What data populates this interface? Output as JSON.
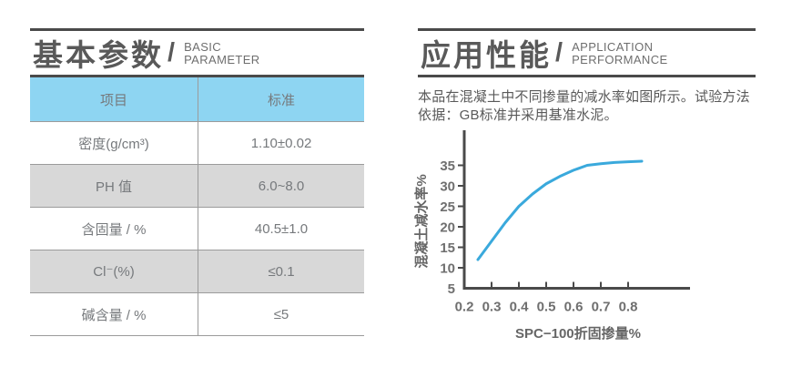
{
  "left_section": {
    "title_cn": "基本参数",
    "title_divider": "/",
    "title_en_line1": "BASIC",
    "title_en_line2": "PARAMETER",
    "table": {
      "headers": [
        "项目",
        "标准"
      ],
      "rows": [
        {
          "item": "密度(g/cm³)",
          "value": "1.10±0.02"
        },
        {
          "item": "PH 值",
          "value": "6.0~8.0"
        },
        {
          "item": "含固量 / %",
          "value": "40.5±1.0"
        },
        {
          "item": "Cl⁻(%)",
          "value": "≤0.1"
        },
        {
          "item": "碱含量 / %",
          "value": "≤5"
        }
      ],
      "header_bg": "#8ED5F2",
      "row_alt_bg": "#D8D8D8"
    }
  },
  "right_section": {
    "title_cn": "应用性能",
    "title_divider": "/",
    "title_en_line1": "APPLICATION",
    "title_en_line2": "PERFORMANCE",
    "description": "本品在混凝土中不同掺量的减水率如图所示。试验方法依据：GB标准并采用基准水泥。"
  },
  "chart_data": {
    "type": "line",
    "title": "",
    "xlabel": "SPC−100折固掺量%",
    "ylabel": "混凝土减水率%",
    "x_ticks": [
      0.2,
      0.3,
      0.4,
      0.5,
      0.6,
      0.7,
      0.8
    ],
    "y_ticks": [
      5,
      10,
      15,
      20,
      25,
      30,
      35
    ],
    "xlim": [
      0.2,
      0.88
    ],
    "ylim": [
      5,
      38
    ],
    "grid": false,
    "legend": false,
    "series": [
      {
        "name": "混凝土减水率",
        "color": "#3AA9DC",
        "x": [
          0.25,
          0.3,
          0.35,
          0.4,
          0.45,
          0.5,
          0.55,
          0.6,
          0.65,
          0.7,
          0.75,
          0.8,
          0.85
        ],
        "y": [
          12.0,
          16.5,
          21.0,
          25.0,
          28.0,
          30.5,
          32.3,
          33.8,
          35.0,
          35.4,
          35.7,
          35.85,
          36.0
        ]
      }
    ],
    "axis_color": "#4a4a4a"
  }
}
